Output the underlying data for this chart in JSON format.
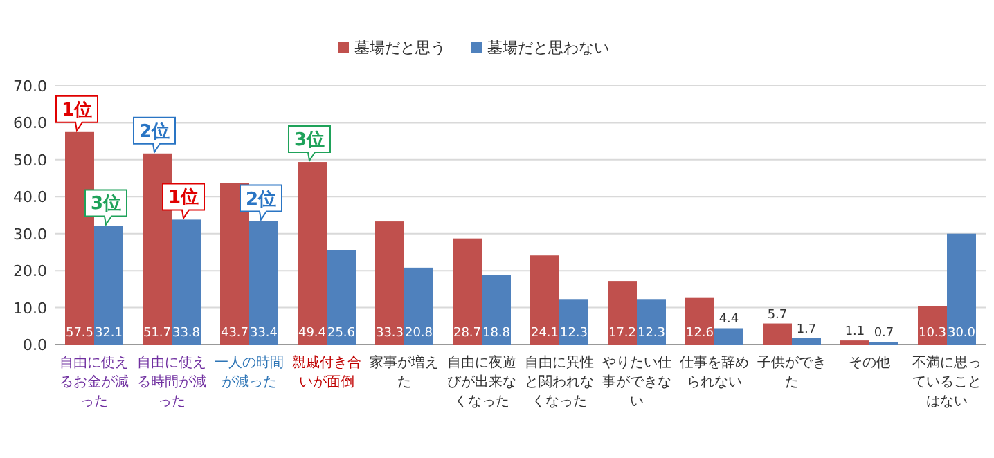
{
  "chart_data": {
    "type": "bar",
    "categories": [
      "自由に使えるお金が減った",
      "自由に使える時間が減った",
      "一人の時間が減った",
      "親戚付き合いが面倒",
      "家事が増えた",
      "自由に夜遊びが出来なくなった",
      "自由に異性と関われなくなった",
      "やりたい仕事ができない",
      "仕事を辞められない",
      "子供ができた",
      "その他",
      "不満に思っていることはない"
    ],
    "series": [
      {
        "name": "墓場だと思う",
        "color": "#c0504d",
        "values": [
          57.5,
          51.7,
          43.7,
          49.4,
          33.3,
          28.7,
          24.1,
          17.2,
          12.6,
          5.7,
          1.1,
          10.3
        ],
        "value_labels": [
          "57.5",
          "51.7",
          "43.7",
          "49.4",
          "33.3",
          "28.7",
          "24.1",
          "17.2",
          "12.6",
          "5.7",
          "1.1",
          "10.3"
        ]
      },
      {
        "name": "墓場だと思わない",
        "color": "#4f81bd",
        "values": [
          32.1,
          33.8,
          33.4,
          25.6,
          20.8,
          18.8,
          12.3,
          12.3,
          4.4,
          1.7,
          0.7,
          30.0
        ],
        "value_labels": [
          "32.1",
          "33.8",
          "33.4",
          "25.6",
          "20.8",
          "18.8",
          "12.3",
          "12.3",
          "4.4",
          "1.7",
          "0.7",
          "30.0"
        ]
      }
    ],
    "ylim": [
      0,
      70
    ],
    "yticks": [
      {
        "value": 0,
        "label": "0.0"
      },
      {
        "value": 10,
        "label": "10.0"
      },
      {
        "value": 20,
        "label": "20.0"
      },
      {
        "value": 30,
        "label": "30.0"
      },
      {
        "value": 40,
        "label": "40.0"
      },
      {
        "value": 50,
        "label": "50.0"
      },
      {
        "value": 60,
        "label": "60.0"
      },
      {
        "value": 70,
        "label": "70.0"
      }
    ],
    "grid": "y",
    "legend": "top",
    "annotations": [
      {
        "text": "1位",
        "x": "自由に使えるお金が減った",
        "y": 57.5
      },
      {
        "text": "2位",
        "x": "自由に使える時間が減った",
        "y": 51.7
      },
      {
        "text": "3位",
        "x": "親戚付き合いが面倒",
        "y": 49.4
      },
      {
        "text": "1位",
        "x": "自由に使える時間が減った",
        "y": 33.8
      },
      {
        "text": "2位",
        "x": "一人の時間が減った",
        "y": 33.4
      },
      {
        "text": "3位",
        "x": "自由に使えるお金が減った",
        "y": 32.1
      }
    ]
  }
}
